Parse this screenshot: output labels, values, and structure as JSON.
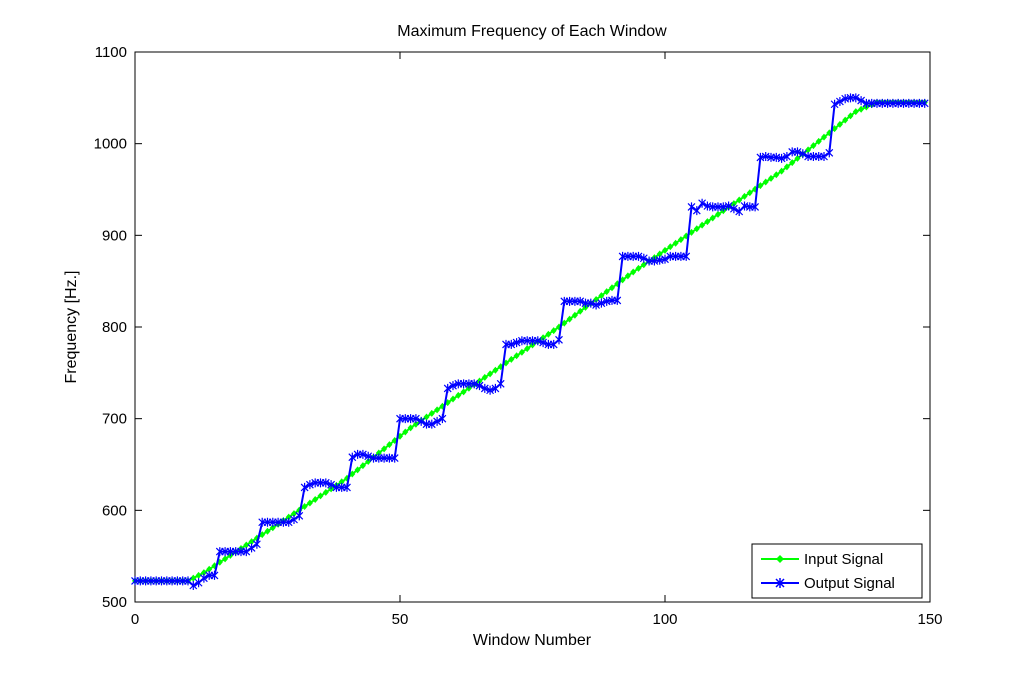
{
  "chart_data": {
    "type": "line",
    "title": "Maximum Frequency of Each Window",
    "xlabel": "Window Number",
    "ylabel": "Frequency [Hz.]",
    "xlim": [
      0,
      150
    ],
    "ylim": [
      500,
      1100
    ],
    "xticks": [
      0,
      50,
      100,
      150
    ],
    "yticks": [
      500,
      600,
      700,
      800,
      900,
      1000,
      1100
    ],
    "grid": false,
    "legend_position": "bottom-right",
    "series": [
      {
        "name": "Input Signal",
        "color": "#00ff00",
        "marker": "diamond",
        "points": [
          [
            0,
            523
          ],
          [
            10,
            523
          ],
          [
            13,
            532
          ],
          [
            26,
            581
          ],
          [
            40,
            635
          ],
          [
            52,
            690
          ],
          [
            66,
            745
          ],
          [
            80,
            800
          ],
          [
            94,
            860
          ],
          [
            108,
            915
          ],
          [
            122,
            970
          ],
          [
            136,
            1035
          ],
          [
            140,
            1045
          ],
          [
            149,
            1045
          ]
        ]
      },
      {
        "name": "Output Signal",
        "color": "#0000ff",
        "marker": "star",
        "points": [
          [
            0,
            523
          ],
          [
            1,
            523
          ],
          [
            2,
            523
          ],
          [
            3,
            523
          ],
          [
            4,
            523
          ],
          [
            5,
            523
          ],
          [
            6,
            523
          ],
          [
            7,
            523
          ],
          [
            8,
            523
          ],
          [
            9,
            523
          ],
          [
            10,
            523
          ],
          [
            11,
            518
          ],
          [
            12,
            521
          ],
          [
            13,
            526
          ],
          [
            14,
            529
          ],
          [
            15,
            529
          ],
          [
            16,
            555
          ],
          [
            17,
            555
          ],
          [
            18,
            555
          ],
          [
            19,
            555
          ],
          [
            20,
            555
          ],
          [
            21,
            555
          ],
          [
            22,
            559
          ],
          [
            23,
            563
          ],
          [
            24,
            587
          ],
          [
            25,
            587
          ],
          [
            26,
            587
          ],
          [
            27,
            587
          ],
          [
            28,
            587
          ],
          [
            29,
            587
          ],
          [
            30,
            590
          ],
          [
            31,
            594
          ],
          [
            32,
            625
          ],
          [
            33,
            628
          ],
          [
            34,
            630
          ],
          [
            35,
            630
          ],
          [
            36,
            630
          ],
          [
            37,
            628
          ],
          [
            38,
            625
          ],
          [
            39,
            625
          ],
          [
            40,
            625
          ],
          [
            41,
            658
          ],
          [
            42,
            661
          ],
          [
            43,
            661
          ],
          [
            44,
            659
          ],
          [
            45,
            657
          ],
          [
            46,
            657
          ],
          [
            47,
            657
          ],
          [
            48,
            657
          ],
          [
            49,
            657
          ],
          [
            50,
            700
          ],
          [
            51,
            700
          ],
          [
            52,
            700
          ],
          [
            53,
            700
          ],
          [
            54,
            697
          ],
          [
            55,
            694
          ],
          [
            56,
            694
          ],
          [
            57,
            697
          ],
          [
            58,
            700
          ],
          [
            59,
            733
          ],
          [
            60,
            736
          ],
          [
            61,
            738
          ],
          [
            62,
            738
          ],
          [
            63,
            738
          ],
          [
            64,
            738
          ],
          [
            65,
            736
          ],
          [
            66,
            733
          ],
          [
            67,
            731
          ],
          [
            68,
            733
          ],
          [
            69,
            738
          ],
          [
            70,
            781
          ],
          [
            71,
            781
          ],
          [
            72,
            783
          ],
          [
            73,
            785
          ],
          [
            74,
            785
          ],
          [
            75,
            785
          ],
          [
            76,
            785
          ],
          [
            77,
            783
          ],
          [
            78,
            781
          ],
          [
            79,
            781
          ],
          [
            80,
            786
          ],
          [
            81,
            828
          ],
          [
            82,
            828
          ],
          [
            83,
            828
          ],
          [
            84,
            828
          ],
          [
            85,
            826
          ],
          [
            86,
            826
          ],
          [
            87,
            824
          ],
          [
            88,
            826
          ],
          [
            89,
            828
          ],
          [
            90,
            829
          ],
          [
            91,
            829
          ],
          [
            92,
            877
          ],
          [
            93,
            877
          ],
          [
            94,
            877
          ],
          [
            95,
            877
          ],
          [
            96,
            875
          ],
          [
            97,
            872
          ],
          [
            98,
            872
          ],
          [
            99,
            873
          ],
          [
            100,
            874
          ],
          [
            101,
            877
          ],
          [
            102,
            877
          ],
          [
            103,
            877
          ],
          [
            104,
            877
          ],
          [
            105,
            931
          ],
          [
            106,
            927
          ],
          [
            107,
            935
          ],
          [
            108,
            932
          ],
          [
            109,
            931
          ],
          [
            110,
            931
          ],
          [
            111,
            931
          ],
          [
            112,
            932
          ],
          [
            113,
            929
          ],
          [
            114,
            926
          ],
          [
            115,
            932
          ],
          [
            116,
            931
          ],
          [
            117,
            931
          ],
          [
            118,
            985
          ],
          [
            119,
            986
          ],
          [
            120,
            985
          ],
          [
            121,
            985
          ],
          [
            122,
            984
          ],
          [
            123,
            986
          ],
          [
            124,
            991
          ],
          [
            125,
            991
          ],
          [
            126,
            989
          ],
          [
            127,
            986
          ],
          [
            128,
            986
          ],
          [
            129,
            986
          ],
          [
            130,
            986
          ],
          [
            131,
            990
          ],
          [
            132,
            1043
          ],
          [
            133,
            1046
          ],
          [
            134,
            1049
          ],
          [
            135,
            1050
          ],
          [
            136,
            1050
          ],
          [
            137,
            1047
          ],
          [
            138,
            1044
          ],
          [
            139,
            1044
          ],
          [
            140,
            1044
          ],
          [
            141,
            1044
          ],
          [
            142,
            1044
          ],
          [
            143,
            1044
          ],
          [
            144,
            1044
          ],
          [
            145,
            1044
          ],
          [
            146,
            1044
          ],
          [
            147,
            1044
          ],
          [
            148,
            1044
          ],
          [
            149,
            1044
          ]
        ]
      }
    ]
  }
}
